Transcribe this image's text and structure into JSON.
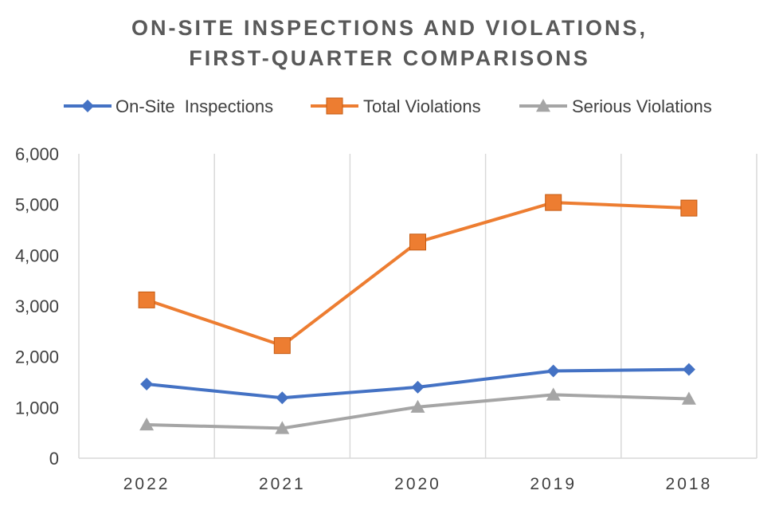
{
  "chart_data": {
    "type": "line",
    "title": [
      "ON-SITE INSPECTIONS AND VIOLATIONS,",
      "FIRST-QUARTER COMPARISONS"
    ],
    "categories": [
      "2022",
      "2021",
      "2020",
      "2019",
      "2018"
    ],
    "ylim": [
      0,
      6000
    ],
    "yticks": [
      0,
      1000,
      2000,
      3000,
      4000,
      5000,
      6000
    ],
    "ytick_labels": [
      "0",
      "1,000",
      "2,000",
      "3,000",
      "4,000",
      "5,000",
      "6,000"
    ],
    "grid": "vertical",
    "legend_position": "top",
    "series": [
      {
        "name": "On-Site  Inspections",
        "color": "#4472C4",
        "marker": "diamond",
        "values": [
          1460,
          1190,
          1400,
          1720,
          1750
        ]
      },
      {
        "name": "Total Violations",
        "color": "#ED7D31",
        "marker": "square",
        "values": [
          3120,
          2220,
          4260,
          5040,
          4930
        ]
      },
      {
        "name": "Serious Violations",
        "color": "#A5A5A5",
        "marker": "triangle",
        "values": [
          660,
          590,
          1010,
          1250,
          1170
        ]
      }
    ]
  }
}
